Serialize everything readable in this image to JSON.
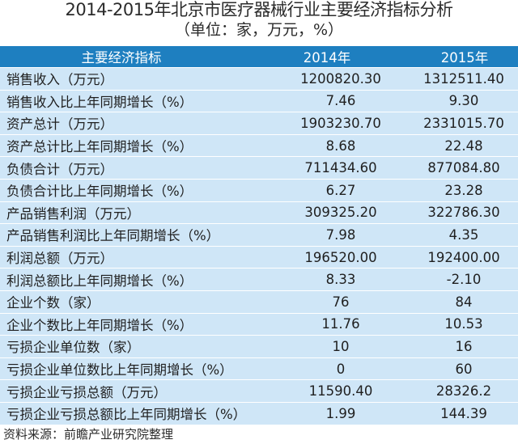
{
  "title": "2014-2015年北京市医疗器械行业主要经济指标分析",
  "subtitle": "（单位：家，万元，%）",
  "table": {
    "headers": [
      "主要经济指标",
      "2014年",
      "2015年"
    ],
    "rows": [
      [
        "销售收入（万元）",
        "1200820.30",
        "1312511.40"
      ],
      [
        "销售收入比上年同期增长（%）",
        "7.46",
        "9.30"
      ],
      [
        "资产总计（万元）",
        "1903230.70",
        "2331015.70"
      ],
      [
        "资产总计比上年同期增长（%）",
        "8.68",
        "22.48"
      ],
      [
        "负债合计（万元）",
        "711434.60",
        "877084.80"
      ],
      [
        "负债合计比上年同期增长（%）",
        "6.27",
        "23.28"
      ],
      [
        "产品销售利润（万元）",
        "309325.20",
        "322786.30"
      ],
      [
        "产品销售利润比上年同期增长（%）",
        "7.98",
        "4.35"
      ],
      [
        "利润总额（万元）",
        "196520.00",
        "192400.00"
      ],
      [
        "利润总额比上年同期增长（%）",
        "8.33",
        "-2.10"
      ],
      [
        "企业个数（家）",
        "76",
        "84"
      ],
      [
        "企业个数比上年同期增长（%）",
        "11.76",
        "10.53"
      ],
      [
        "亏损企业单位数（家）",
        "10",
        "16"
      ],
      [
        "亏损企业单位数比上年同期增长（%）",
        "0",
        "60"
      ],
      [
        "亏损企业亏损总额（万元）",
        "11590.40",
        "28326.2"
      ],
      [
        "亏损企业亏损总额比上年同期增长（%）",
        "1.99",
        "144.39"
      ]
    ]
  },
  "source": "资料来源：前瞻产业研究院整理",
  "colors": {
    "header_bg": "#1e7fc0",
    "row_bg": "#cfe6f7",
    "text": "#1f1f1f"
  }
}
